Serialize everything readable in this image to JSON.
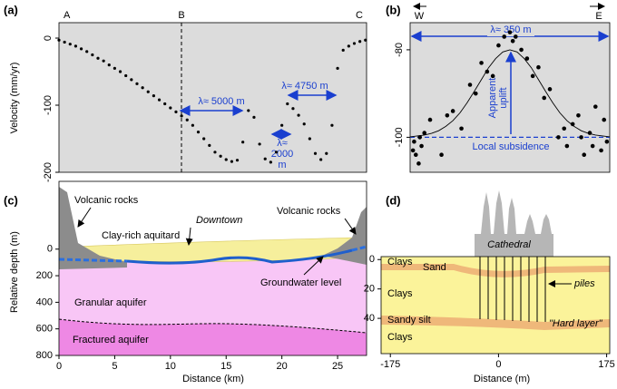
{
  "chart_data": [
    {
      "type": "scatter",
      "label": "(a)",
      "ylabel": "Velocity (mm/yr)",
      "color": "#000000",
      "markers": [
        "A",
        "B",
        "C"
      ],
      "annotations": [
        "λ≈ 5000 m",
        "λ≈ 4750 m",
        "λ≈",
        "2000",
        "m"
      ],
      "x": [
        0,
        0.5,
        1,
        1.5,
        2,
        2.5,
        3,
        3.5,
        4,
        4.5,
        5,
        5.5,
        6,
        6.5,
        7,
        7.5,
        8,
        8.5,
        9,
        9.5,
        10,
        10.5,
        11,
        11.5,
        12,
        12.5,
        13,
        13.5,
        14,
        14.5,
        15,
        15.5,
        16,
        16.5,
        17,
        17.5,
        18,
        18.5,
        19,
        19.5,
        20,
        20.5,
        21,
        21.5,
        22,
        22.5,
        23,
        23.5,
        24,
        24.5,
        25,
        25.5,
        26,
        26.5,
        27,
        27.5
      ],
      "values": [
        -3,
        -6,
        -9,
        -12,
        -16,
        -20,
        -25,
        -30,
        -34,
        -40,
        -45,
        -50,
        -56,
        -62,
        -68,
        -74,
        -80,
        -86,
        -92,
        -98,
        -104,
        -110,
        -116,
        -122,
        -130,
        -140,
        -150,
        -160,
        -170,
        -176,
        -181,
        -184,
        -182,
        -155,
        -108,
        -118,
        -158,
        -180,
        -185,
        -170,
        -130,
        -98,
        -105,
        -115,
        -128,
        -150,
        -172,
        -181,
        -172,
        -130,
        -45,
        -18,
        -12,
        -8,
        -5,
        -3
      ],
      "xlim": [
        0,
        27.6
      ],
      "ylim": [
        -200,
        23
      ],
      "yticks": [
        0,
        -100,
        -200
      ]
    },
    {
      "type": "scatter",
      "label": "(b)",
      "color": "#000000",
      "annotations": [
        "W",
        "E",
        "λ≈ 350 m",
        "Apparent",
        "uplift",
        "Local subsidence"
      ],
      "x": [
        -170,
        -168,
        -165,
        -160,
        -158,
        -155,
        -150,
        -140,
        -120,
        -110,
        -100,
        -85,
        -70,
        -60,
        -50,
        -40,
        -30,
        -20,
        -10,
        0,
        5,
        10,
        20,
        30,
        40,
        50,
        60,
        70,
        85,
        95,
        100,
        110,
        120,
        125,
        130,
        140,
        145,
        150,
        160,
        165,
        170
      ],
      "values": [
        -103,
        -101,
        -104,
        -106,
        -100,
        -102,
        -99,
        -96,
        -104,
        -95,
        -94,
        -98,
        -88,
        -90,
        -83,
        -85,
        -86,
        -79,
        -77,
        -76,
        -78,
        -77,
        -80,
        -82,
        -86,
        -84,
        -91,
        -89,
        -100,
        -98,
        -102,
        -97,
        -95,
        -100,
        -104,
        -99,
        -102,
        -93,
        -103,
        -96,
        -101
      ],
      "fit": {
        "x": [
          -175,
          -162.5,
          -150,
          -137.5,
          -125,
          -112.5,
          -100,
          -87.5,
          -75,
          -62.5,
          -50,
          -37.5,
          -25,
          -12.5,
          0,
          12.5,
          25,
          37.5,
          50,
          62.5,
          75,
          87.5,
          100,
          112.5,
          125,
          137.5,
          150,
          162.5,
          175
        ],
        "values": [
          -99.9,
          -99.7,
          -99.5,
          -99.1,
          -98.5,
          -97.5,
          -96.2,
          -94.4,
          -92.1,
          -89.5,
          -86.8,
          -84.1,
          -82,
          -80.5,
          -80,
          -80.5,
          -82,
          -84.1,
          -86.8,
          -89.5,
          -92.1,
          -94.4,
          -96.2,
          -97.5,
          -98.5,
          -99.1,
          -99.5,
          -99.7,
          -99.9
        ]
      },
      "subsidence": -100,
      "xlim": [
        -175,
        175
      ],
      "ylim": [
        -108,
        -73.8
      ],
      "yticks": [
        -80,
        -100
      ]
    },
    {
      "type": "section",
      "label": "(c)",
      "xlabel": "Distance (km)",
      "ylabel": "Relative depth (m)",
      "annotations": [
        "Volcanic rocks",
        "Downtown",
        "Volcanic rocks",
        "Clay-rich aquitard",
        "Groundwater level",
        "Granular aquifer",
        "Fractured aquifer"
      ],
      "xlim": [
        0,
        27.6
      ],
      "ylim": [
        800,
        -510
      ],
      "xticks": [
        0,
        5,
        10,
        15,
        20,
        25
      ],
      "yticks": [
        0,
        200,
        400,
        600,
        800
      ]
    },
    {
      "type": "section",
      "label": "(d)",
      "xlabel": "Distance (m)",
      "annotations": [
        "Cathedral",
        "Clays",
        "Sand",
        "Clays",
        "piles",
        "Sandy silt",
        "\"Hard layer\"",
        "Clays"
      ],
      "xlim": [
        -190,
        180
      ],
      "ylim": [
        64,
        -2
      ],
      "xticks": [
        -175,
        0,
        175
      ],
      "yticks": [
        0,
        20,
        40
      ]
    }
  ]
}
